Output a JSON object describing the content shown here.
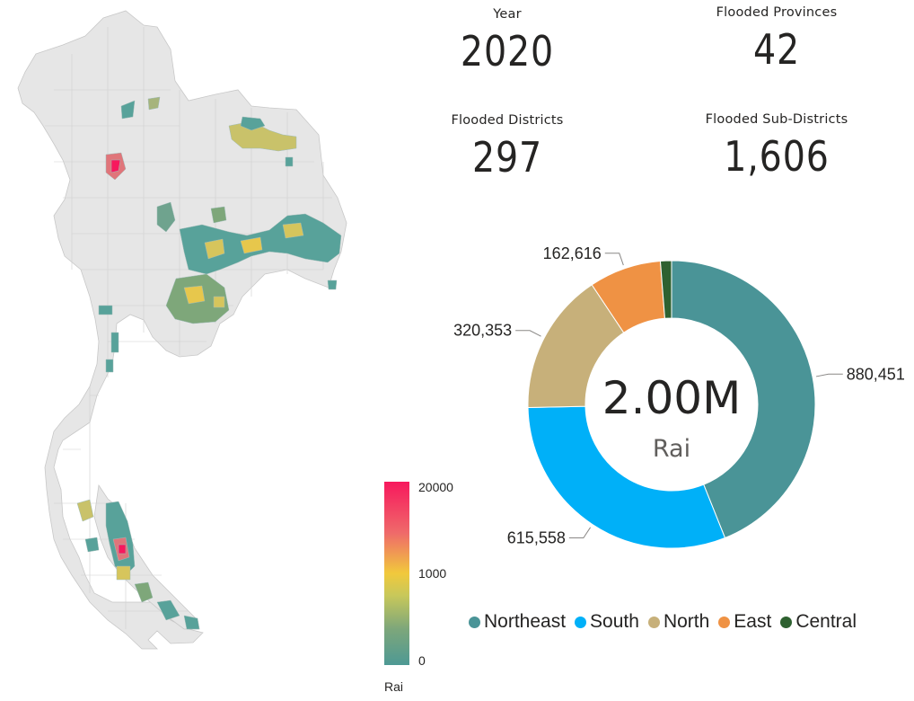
{
  "kpis": {
    "year": {
      "label": "Year",
      "value": "2020"
    },
    "provinces": {
      "label": "Flooded Provinces",
      "value": "42"
    },
    "districts": {
      "label": "Flooded Districts",
      "value": "297"
    },
    "subdistricts": {
      "label": "Flooded Sub-Districts",
      "value": "1,606"
    }
  },
  "map": {
    "color_scale": {
      "title": "Rai",
      "max_label": "20000",
      "mid_label": "1000",
      "min_label": "0",
      "colors": {
        "high": "#f7185d",
        "mid": "#f1c93c",
        "low": "#4e9994"
      }
    },
    "base_color": "#e6e6e6",
    "border_color": "#c8c8c8"
  },
  "chart_data": {
    "type": "pie",
    "donut": true,
    "center_value": "2.00M",
    "center_unit": "Rai",
    "legend_position": "bottom",
    "slices": [
      {
        "name": "Northeast",
        "value": 880451,
        "label": "880,451",
        "color": "#4a9497"
      },
      {
        "name": "South",
        "value": 615558,
        "label": "615,558",
        "color": "#00b0f8"
      },
      {
        "name": "North",
        "value": 320353,
        "label": "320,353",
        "color": "#c7b07a"
      },
      {
        "name": "East",
        "value": 162616,
        "label": "162,616",
        "color": "#ef9244"
      },
      {
        "name": "Central",
        "value": 25000,
        "label": "",
        "color": "#2e6130"
      }
    ]
  }
}
